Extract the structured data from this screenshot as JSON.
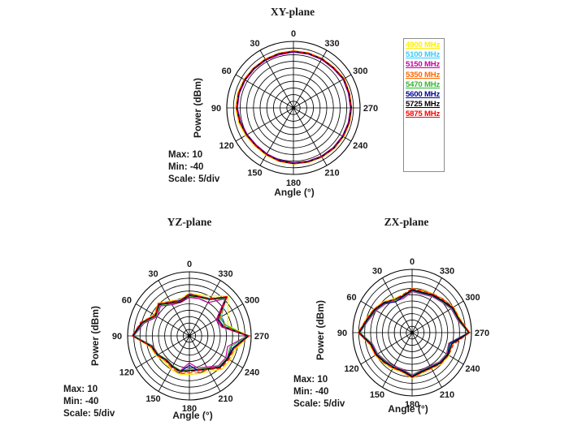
{
  "page": {
    "background": "#ffffff"
  },
  "legend": {
    "border_color": "#8c8c8c",
    "entries": [
      {
        "label": "4900 MHz",
        "color": "#ffee00"
      },
      {
        "label": "5100 MHz",
        "color": "#33ccff"
      },
      {
        "label": "5150 MHz",
        "color": "#c800a1"
      },
      {
        "label": "5350 MHz",
        "color": "#ff6600"
      },
      {
        "label": "5470 MHz",
        "color": "#2eb82e"
      },
      {
        "label": "5600 MHz",
        "color": "#000099"
      },
      {
        "label": "5725 MHz",
        "color": "#000000"
      },
      {
        "label": "5875 MHz",
        "color": "#ff0000"
      }
    ]
  },
  "chart_data": [
    {
      "type": "polar-line",
      "title": "XY-plane",
      "ylabel": "Power  (dBm)",
      "xlabel": "Angle  (°)",
      "annotations": {
        "max": "Max: 10",
        "min": "Min: -40",
        "scale": "Scale: 5/div"
      },
      "rlim": [
        -40,
        10
      ],
      "divisions": 10,
      "grid": true,
      "legend_position": "outside-right",
      "tick_step_deg": 30,
      "tick_labels": [
        "0",
        "30",
        "60",
        "90",
        "120",
        "150",
        "180",
        "210",
        "240",
        "270",
        "300",
        "330"
      ],
      "angles_deg": [
        0,
        15,
        30,
        45,
        60,
        75,
        90,
        105,
        120,
        135,
        150,
        165,
        180,
        195,
        210,
        225,
        240,
        255,
        270,
        285,
        300,
        315,
        330,
        345
      ],
      "series": [
        {
          "name": "4900 MHz",
          "color": "#ffee00",
          "dash": "",
          "values": [
            3.0,
            2.7,
            2.5,
            2.5,
            2.9,
            3.3,
            3.5,
            2.6,
            1.6,
            0.8,
            1.1,
            1.8,
            2.3,
            2.5,
            2.9,
            3.3,
            3.5,
            3.7,
            3.8,
            3.6,
            4.2,
            3.1,
            3.1,
            3.0
          ]
        },
        {
          "name": "5100 MHz",
          "color": "#33ccff",
          "dash": "",
          "values": [
            2.2,
            1.9,
            1.7,
            1.7,
            2.0,
            2.3,
            2.3,
            1.3,
            0.3,
            -0.3,
            0.1,
            0.9,
            1.5,
            1.7,
            2.1,
            2.5,
            2.7,
            2.9,
            3.1,
            2.9,
            3.3,
            2.3,
            2.3,
            2.2
          ]
        },
        {
          "name": "5150 MHz",
          "color": "#c800a1",
          "dash": "",
          "values": [
            1.9,
            1.3,
            1.4,
            1.4,
            1.7,
            2.0,
            2.0,
            1.0,
            0.0,
            -0.6,
            -0.2,
            0.6,
            1.2,
            1.4,
            1.8,
            2.2,
            2.4,
            2.6,
            2.8,
            2.6,
            3.0,
            2.0,
            2.0,
            1.9
          ]
        },
        {
          "name": "5350 MHz",
          "color": "#ff6600",
          "dash": "6,3",
          "values": [
            2.8,
            2.5,
            2.3,
            2.3,
            2.6,
            2.9,
            2.9,
            1.9,
            0.9,
            0.3,
            0.7,
            1.5,
            2.1,
            2.3,
            2.7,
            3.1,
            3.3,
            3.5,
            3.7,
            3.5,
            3.9,
            2.9,
            2.9,
            2.8
          ]
        },
        {
          "name": "5470 MHz",
          "color": "#2eb82e",
          "dash": "",
          "values": [
            2.5,
            2.2,
            2.0,
            2.0,
            2.3,
            2.6,
            2.6,
            1.6,
            0.6,
            0.0,
            0.4,
            1.2,
            1.8,
            2.0,
            2.4,
            2.8,
            3.0,
            3.2,
            3.4,
            3.2,
            3.6,
            2.6,
            2.6,
            2.5
          ]
        },
        {
          "name": "5600 MHz",
          "color": "#000099",
          "dash": "",
          "values": [
            2.3,
            2.0,
            1.8,
            1.8,
            2.1,
            2.4,
            2.4,
            1.4,
            0.4,
            -0.2,
            0.2,
            1.0,
            1.6,
            1.8,
            2.2,
            2.6,
            2.8,
            3.0,
            3.2,
            3.0,
            3.4,
            2.4,
            2.4,
            2.3
          ]
        },
        {
          "name": "5725 MHz",
          "color": "#000000",
          "dash": "",
          "values": [
            2.6,
            2.3,
            2.1,
            2.1,
            2.4,
            2.7,
            2.7,
            1.7,
            0.7,
            0.1,
            0.5,
            1.3,
            1.9,
            2.1,
            2.5,
            2.9,
            3.1,
            3.3,
            3.5,
            3.3,
            3.7,
            2.7,
            2.7,
            2.6
          ]
        },
        {
          "name": "5875 MHz",
          "color": "#ff0000",
          "dash": "5,3",
          "values": [
            2.7,
            2.4,
            2.2,
            2.3,
            2.5,
            2.8,
            2.8,
            1.8,
            0.9,
            0.2,
            0.6,
            1.4,
            2.0,
            2.2,
            2.6,
            3.0,
            3.2,
            3.4,
            3.6,
            3.4,
            3.8,
            2.8,
            2.8,
            2.7
          ]
        }
      ]
    },
    {
      "type": "polar-line",
      "title": "YZ-plane",
      "ylabel": "Power  (dBm)",
      "xlabel": "Angle  (°)",
      "annotations": {
        "max": "Max: 10",
        "min": "Min: -40",
        "scale": "Scale: 5/div"
      },
      "rlim": [
        -40,
        10
      ],
      "divisions": 10,
      "grid": true,
      "tick_step_deg": 30,
      "tick_labels": [
        "0",
        "30",
        "60",
        "90",
        "120",
        "150",
        "180",
        "210",
        "240",
        "270",
        "300",
        "330"
      ],
      "angles_deg": [
        0,
        15,
        30,
        45,
        60,
        75,
        90,
        105,
        120,
        135,
        150,
        165,
        180,
        195,
        210,
        225,
        240,
        255,
        270,
        285,
        300,
        315,
        330,
        345
      ],
      "series": [
        {
          "name": "4900 MHz",
          "color": "#ffee00",
          "dash": "",
          "values": [
            -6.5,
            -10.5,
            -8.5,
            -4,
            -7,
            0.5,
            6,
            -7,
            -9,
            -11.5,
            -10,
            -9,
            -10,
            -9.5,
            -8,
            -3,
            -2,
            -1,
            8,
            -8,
            -4,
            4,
            -4,
            -7
          ]
        },
        {
          "name": "5100 MHz",
          "color": "#33ccff",
          "dash": "",
          "values": [
            -8,
            -11.5,
            -9.5,
            -5,
            -8,
            0,
            5.5,
            -8,
            -10,
            -13,
            -12,
            -11,
            -13,
            -12,
            -10,
            -5,
            -4,
            -4,
            7.5,
            -11,
            -10,
            2,
            -6,
            -8.5
          ]
        },
        {
          "name": "5150 MHz",
          "color": "#c800a1",
          "dash": "",
          "values": [
            -10,
            -13,
            -12,
            -7,
            -10,
            -2,
            5,
            -9.5,
            -11,
            -14,
            -13,
            -12,
            -19,
            -14,
            -12,
            -7,
            -6,
            -8,
            7,
            -13,
            -15,
            1,
            -10,
            -10
          ]
        },
        {
          "name": "5350 MHz",
          "color": "#ff6600",
          "dash": "6,3",
          "values": [
            -7,
            -11,
            -9,
            -4,
            -7.5,
            1,
            6,
            -7.5,
            -9.5,
            -12.5,
            -11,
            -10,
            -11,
            -11,
            -9.5,
            -4,
            -3,
            -2,
            8,
            -10,
            -11,
            3,
            -6,
            -8
          ]
        },
        {
          "name": "5470 MHz",
          "color": "#2eb82e",
          "dash": "",
          "values": [
            -9,
            -12.5,
            -11,
            -6,
            -9,
            -1,
            5,
            -9,
            -11,
            -14,
            -13,
            -12,
            -14,
            -13,
            -11,
            -6,
            -5,
            -6,
            7,
            -9,
            -12,
            1.5,
            -7.5,
            -9
          ]
        },
        {
          "name": "5600 MHz",
          "color": "#000099",
          "dash": "",
          "values": [
            -7.5,
            -11.5,
            -9.5,
            -5.5,
            -8,
            -0.5,
            5.5,
            -8,
            -10,
            -13,
            -12,
            -11,
            -17,
            -12,
            -10,
            -5.5,
            -4.5,
            -3.5,
            7.5,
            -11.5,
            -13,
            2.5,
            -7,
            -8
          ]
        },
        {
          "name": "5725 MHz",
          "color": "#000000",
          "dash": "",
          "values": [
            -8.5,
            -12.5,
            -10.5,
            -5,
            -8.5,
            0,
            6,
            -8.5,
            -10.5,
            -13.5,
            -12.5,
            -11.5,
            -13,
            -12.5,
            -10.5,
            -5,
            -4,
            -3,
            8,
            -12,
            -14,
            3,
            -7,
            -8.5
          ]
        },
        {
          "name": "5875 MHz",
          "color": "#ff0000",
          "dash": "5,3",
          "values": [
            -8,
            -12,
            -10,
            -4.5,
            -8,
            0.5,
            6.5,
            -8,
            -10,
            -13,
            -12,
            -11,
            -12,
            -12,
            -10,
            -4.5,
            -3.5,
            -2.5,
            8.5,
            -12,
            -14,
            3.5,
            -6.5,
            -8
          ]
        }
      ]
    },
    {
      "type": "polar-line",
      "title": "ZX-plane",
      "ylabel": "Power  (dBm)",
      "xlabel": "Angle  (°)",
      "annotations": {
        "max": "Max: 10",
        "min": "Min: -40",
        "scale": "Scale: 5/div"
      },
      "rlim": [
        -40,
        10
      ],
      "divisions": 10,
      "grid": true,
      "tick_step_deg": 30,
      "tick_labels": [
        "0",
        "30",
        "60",
        "90",
        "120",
        "150",
        "180",
        "210",
        "240",
        "270",
        "300",
        "330"
      ],
      "angles_deg": [
        0,
        15,
        30,
        45,
        60,
        75,
        90,
        105,
        120,
        135,
        150,
        165,
        180,
        195,
        210,
        225,
        240,
        255,
        270,
        285,
        300,
        315,
        330,
        345
      ],
      "series": [
        {
          "name": "4900 MHz",
          "color": "#ffee00",
          "dash": "",
          "values": [
            -5,
            -9,
            -9,
            -5.5,
            -2.5,
            0.5,
            5.5,
            -3,
            -4,
            -6,
            -7,
            -7.5,
            -4,
            -7,
            -7,
            -5,
            -4,
            -4.5,
            8.5,
            2,
            0.5,
            -3,
            -4.5,
            -5.5
          ]
        },
        {
          "name": "5100 MHz",
          "color": "#33ccff",
          "dash": "",
          "values": [
            -6,
            -10,
            -10.5,
            -6.5,
            -3.5,
            -0.5,
            5,
            -4,
            -5,
            -7,
            -8,
            -8.5,
            -5,
            -8,
            -8,
            -6,
            -5,
            -6,
            8,
            1,
            -0.5,
            -4,
            -5.5,
            -7
          ]
        },
        {
          "name": "5150 MHz",
          "color": "#c800a1",
          "dash": "",
          "values": [
            -7.5,
            -12,
            -11.5,
            -8,
            -5,
            -2,
            4,
            -5.5,
            -6.5,
            -8.5,
            -9.5,
            -10,
            -6.5,
            -9.5,
            -9.5,
            -7.5,
            -6.5,
            -8,
            7.5,
            -0.5,
            -2,
            -5.5,
            -7,
            -8.5
          ]
        },
        {
          "name": "5350 MHz",
          "color": "#ff6600",
          "dash": "6,3",
          "values": [
            -5,
            -9.5,
            -9.5,
            -6,
            -3,
            0,
            5.5,
            -3.5,
            -4.5,
            -6.5,
            -7.5,
            -8,
            -4.5,
            -7.5,
            -7.5,
            -5.5,
            -4.5,
            -5,
            8.5,
            1.5,
            0,
            -2.5,
            -4.5,
            -6
          ]
        },
        {
          "name": "5470 MHz",
          "color": "#2eb82e",
          "dash": "",
          "values": [
            -7,
            -11,
            -11,
            -7.5,
            -4.5,
            -1.5,
            4,
            -5,
            -6,
            -8,
            -9,
            -9.5,
            -6,
            -9,
            -9,
            -7,
            -6,
            -7.5,
            7.5,
            0,
            -1.5,
            -5,
            -6.5,
            -8
          ]
        },
        {
          "name": "5600 MHz",
          "color": "#000099",
          "dash": "",
          "values": [
            -6.5,
            -10.5,
            -12,
            -7,
            -4,
            -1,
            4.5,
            -4.5,
            -5.5,
            -7.5,
            -8.5,
            -9,
            -5.5,
            -8.5,
            -8.5,
            -6.5,
            -5.5,
            -7,
            8,
            0.5,
            -1,
            -4.5,
            -6,
            -7.5
          ]
        },
        {
          "name": "5725 MHz",
          "color": "#000000",
          "dash": "",
          "values": [
            -6,
            -10,
            -10,
            -6.5,
            -3.5,
            -0.5,
            5,
            -4,
            -5,
            -7,
            -8,
            -8.5,
            -5,
            -8,
            -8,
            -6,
            -5,
            -5.5,
            8,
            1,
            -0.5,
            -4,
            -5.5,
            -7
          ]
        },
        {
          "name": "5875 MHz",
          "color": "#ff0000",
          "dash": "5,3",
          "values": [
            -5.5,
            -9,
            -10,
            -6,
            -3,
            0,
            5.5,
            -3.5,
            -4.5,
            -6.5,
            -8,
            -8,
            -4.5,
            -7.5,
            -7.5,
            -5.5,
            -4.5,
            -4,
            8.5,
            1.5,
            0,
            -3,
            -5,
            -6
          ]
        }
      ]
    }
  ]
}
